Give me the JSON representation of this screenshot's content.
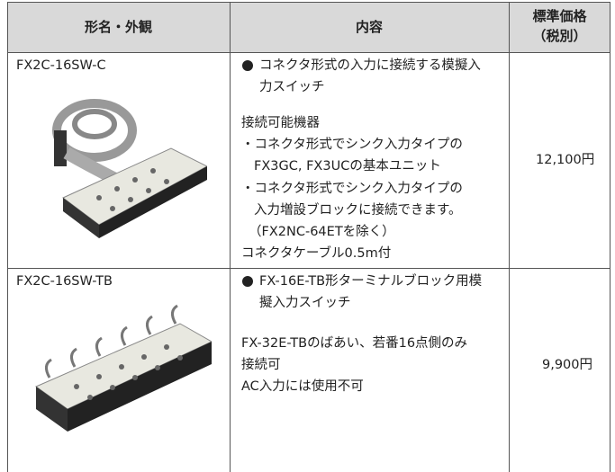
{
  "table": {
    "header": [
      "形名・外観",
      "内容",
      [
        "標準価格",
        "（税別）"
      ]
    ],
    "rows": [
      {
        "model": "FX2C-16SW-C",
        "bullet": [
          "コネクタ形式の入力に接続する模擬入",
          "力スイッチ"
        ],
        "details": [
          "接続可能機器",
          "・コネクタ形式でシンク入力タイプの",
          "FX3GC, FX3UCの基本ユニット",
          "・コネクタ形式でシンク入力タイプの",
          "入力増設ブロックに接続できます。",
          "（FX2NC-64ETを除く）",
          "コネクタケーブル0.5m付"
        ],
        "price": "12,100円"
      },
      {
        "model": "FX2C-16SW-TB",
        "bullet": [
          "FX-16E-TB形ターミナルブロック用模",
          "擬入力スイッチ"
        ],
        "details": [
          "FX-32E-TBのばあい、若番16点側のみ",
          "接続可",
          "AC入力には使用不可"
        ],
        "price": "9,900円"
      }
    ]
  }
}
